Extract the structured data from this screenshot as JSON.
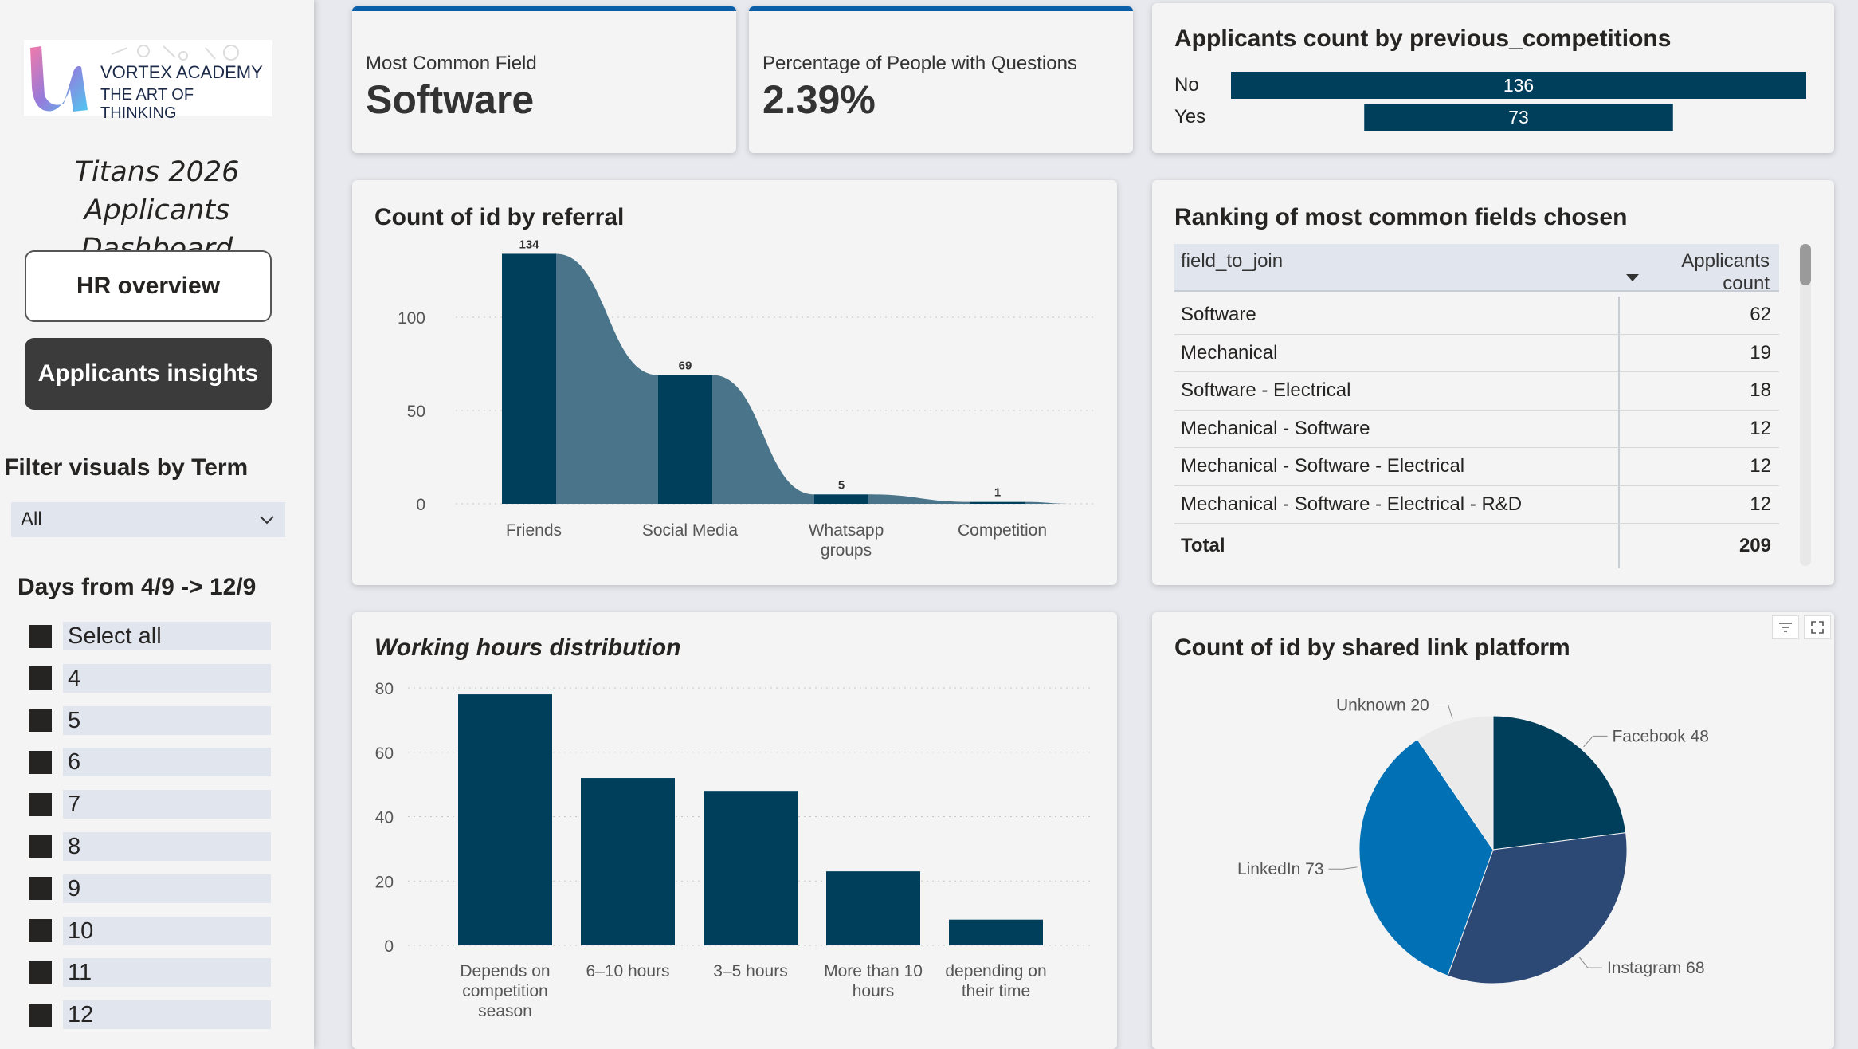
{
  "sidebar": {
    "logo": {
      "name": "VORTEX ACADEMY",
      "tagline": "THE ART OF THINKING"
    },
    "title_line1": "Titans 2026 Applicants",
    "title_line2": "Dashboard",
    "nav": {
      "hr_label": "HR overview",
      "applicants_label": "Applicants insights"
    },
    "term_filter": {
      "label": "Filter visuals by Term",
      "selected": "All"
    },
    "days_filter": {
      "label": "Days from 4/9 -> 12/9",
      "items": [
        "Select all",
        "4",
        "5",
        "6",
        "7",
        "8",
        "9",
        "10",
        "11",
        "12"
      ]
    }
  },
  "kpis": {
    "common_field": {
      "label": "Most Common Field",
      "value": "Software"
    },
    "questions": {
      "label": "Percentage of People with Questions",
      "value": "2.39%"
    }
  },
  "competitions": {
    "title": "Applicants count by previous_competitions",
    "chart_data": {
      "type": "bar",
      "orientation": "horizontal",
      "categories": [
        "No",
        "Yes"
      ],
      "values": [
        136,
        73
      ],
      "labels": [
        "136",
        "73"
      ],
      "color": "#003f5c"
    }
  },
  "referral": {
    "title": "Count of id by referral",
    "chart_data": {
      "type": "bar",
      "categories": [
        "Friends",
        "Social Media",
        "Whatsapp groups",
        "Competition"
      ],
      "category_lines": [
        [
          "Friends"
        ],
        [
          "Social Media"
        ],
        [
          "Whatsapp",
          "groups"
        ],
        [
          "Competition"
        ]
      ],
      "values": [
        134,
        69,
        5,
        1
      ],
      "labels": [
        "134",
        "69",
        "5",
        "1"
      ],
      "ylim": [
        0,
        150
      ],
      "yticks": [
        0,
        50,
        100
      ],
      "ytick_labels": [
        "0",
        "50",
        "100"
      ],
      "grid": true,
      "colors": {
        "bar": "#003f5c",
        "ribbon": "#4a7489"
      }
    }
  },
  "fields_table": {
    "title": "Ranking of most common fields chosen",
    "headers": {
      "field": "field_to_join",
      "count": "Applicants count"
    },
    "rows": [
      {
        "field": "Software",
        "count": "62"
      },
      {
        "field": "Mechanical",
        "count": "19"
      },
      {
        "field": "Software - Electrical",
        "count": "18"
      },
      {
        "field": "Mechanical - Software",
        "count": "12"
      },
      {
        "field": "Mechanical - Software - Electrical",
        "count": "12"
      },
      {
        "field": "Mechanical - Software - Electrical - R&D",
        "count": "12"
      }
    ],
    "total": {
      "label": "Total",
      "count": "209"
    }
  },
  "hours": {
    "title": "Working hours distribution",
    "chart_data": {
      "type": "bar",
      "categories": [
        "Depends on competition season",
        "6–10 hours",
        "3–5 hours",
        "More than 10 hours",
        "depending on their time"
      ],
      "category_lines": [
        [
          "Depends on",
          "competition",
          "season"
        ],
        [
          "6–10 hours"
        ],
        [
          "3–5 hours"
        ],
        [
          "More than 10",
          "hours"
        ],
        [
          "depending on",
          "their time"
        ]
      ],
      "values": [
        78,
        52,
        48,
        23,
        8
      ],
      "ylim": [
        0,
        80
      ],
      "yticks": [
        0,
        20,
        40,
        60,
        80
      ],
      "ytick_labels": [
        "0",
        "20",
        "40",
        "60",
        "80"
      ],
      "grid": true,
      "color": "#003f5c"
    }
  },
  "platform": {
    "title": "Count of id by shared link platform",
    "chart_data": {
      "type": "pie",
      "slices": [
        {
          "name": "Facebook",
          "value": 48,
          "label": "Facebook 48",
          "color": "#003f5c"
        },
        {
          "name": "Instagram",
          "value": 68,
          "label": "Instagram 68",
          "color": "#2c4875"
        },
        {
          "name": "LinkedIn",
          "value": 73,
          "label": "LinkedIn 73",
          "color": "#0270b4"
        },
        {
          "name": "Unknown",
          "value": 20,
          "label": "Unknown 20",
          "color": "#eaeaea"
        }
      ]
    },
    "icons": [
      "filter-icon",
      "focus-mode-icon"
    ]
  }
}
